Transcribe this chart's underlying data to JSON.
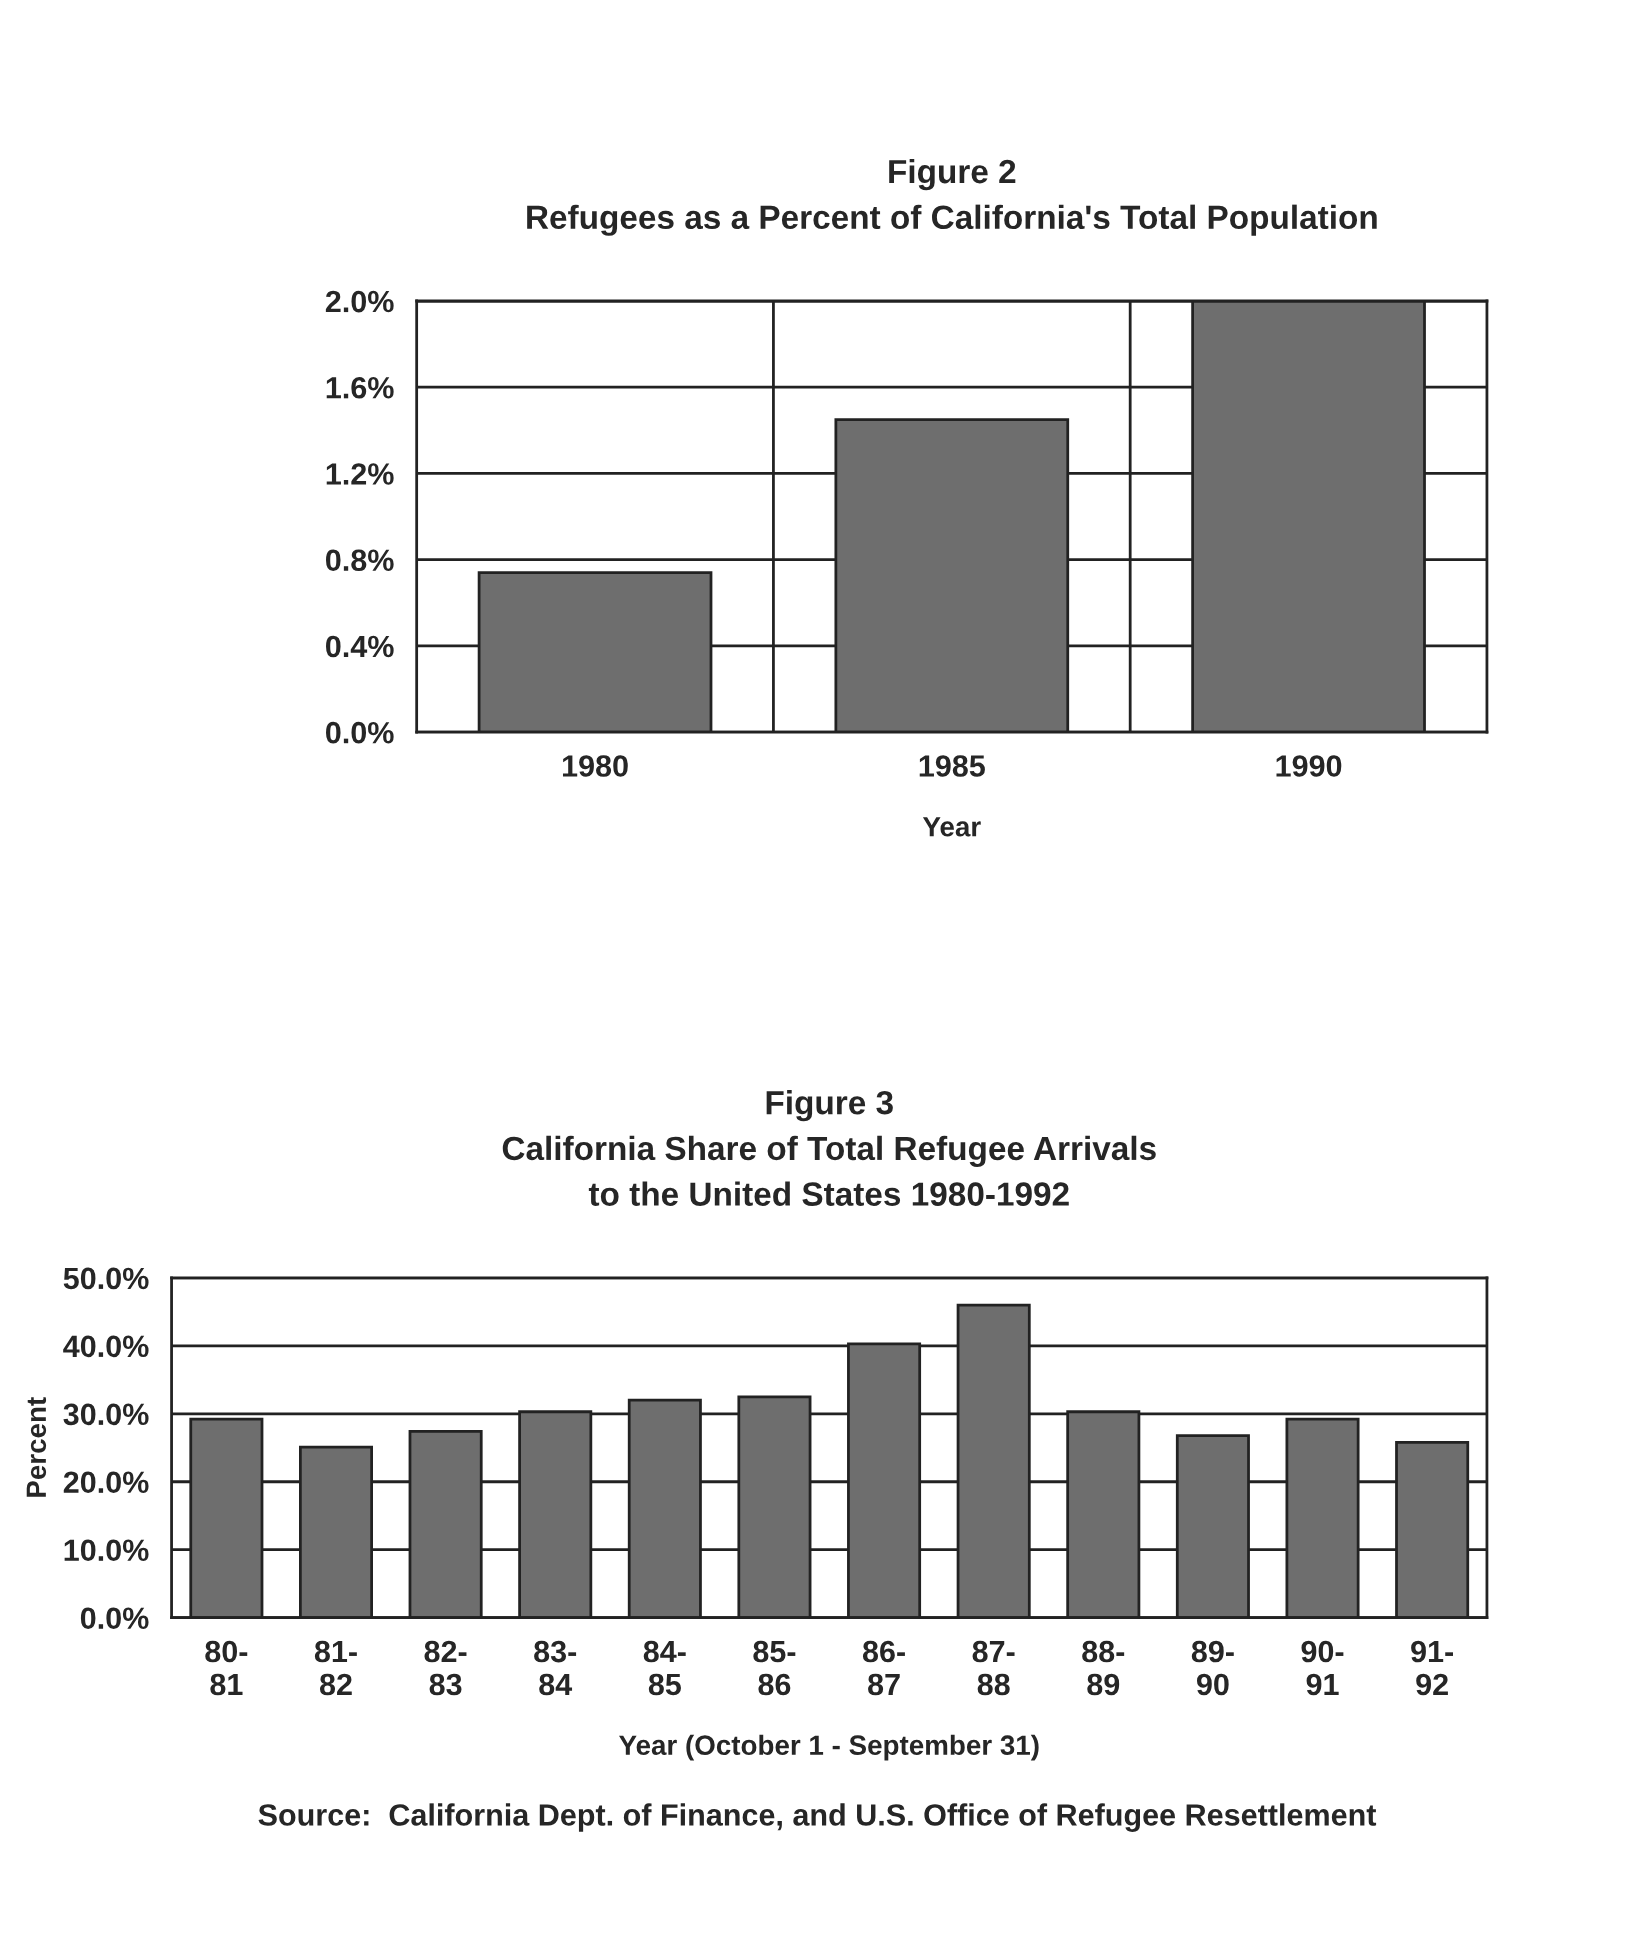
{
  "chart_data": [
    {
      "type": "bar",
      "title": "Figure 2\nRefugees as a Percent of California's Total Population",
      "xlabel": "Year",
      "categories": [
        "1980",
        "1985",
        "1990"
      ],
      "values": [
        0.74,
        1.45,
        2.0
      ],
      "color": "#6e6e6e",
      "ylim": [
        0,
        2.0
      ],
      "yticks": [
        {
          "value": 0,
          "label": "0.0%"
        },
        {
          "value": 0.4,
          "label": "0.4%"
        },
        {
          "value": 0.8,
          "label": "0.8%"
        },
        {
          "value": 1.2,
          "label": "1.2%"
        },
        {
          "value": 1.6,
          "label": "1.6%"
        },
        {
          "value": 2.0,
          "label": "2.0%"
        }
      ],
      "grid": true,
      "legend": false
    },
    {
      "type": "bar",
      "title": "Figure 3\nCalifornia Share of Total Refugee Arrivals\nto the United States 1980-1992",
      "xlabel": "Year (October 1 - September 31)",
      "ylabel": "Percent",
      "categories": [
        "80-\n81",
        "81-\n82",
        "82-\n83",
        "83-\n84",
        "84-\n85",
        "85-\n86",
        "86-\n87",
        "87-\n88",
        "88-\n89",
        "89-\n90",
        "90-\n91",
        "91-\n92"
      ],
      "values": [
        29.2,
        25.1,
        27.4,
        30.3,
        32.0,
        32.5,
        40.3,
        46.0,
        30.3,
        26.8,
        29.2,
        25.8
      ],
      "color": "#6e6e6e",
      "ylim": [
        0,
        50
      ],
      "yticks": [
        {
          "value": 0,
          "label": "0.0%"
        },
        {
          "value": 10,
          "label": "10.0%"
        },
        {
          "value": 20,
          "label": "20.0%"
        },
        {
          "value": 30,
          "label": "30.0%"
        },
        {
          "value": 40,
          "label": "40.0%"
        },
        {
          "value": 50,
          "label": "50.0%"
        }
      ],
      "grid": "y",
      "legend": false,
      "annotations": [
        "Source:  California Dept. of Finance, and U.S. Office of Refugee Resettlement"
      ]
    }
  ]
}
